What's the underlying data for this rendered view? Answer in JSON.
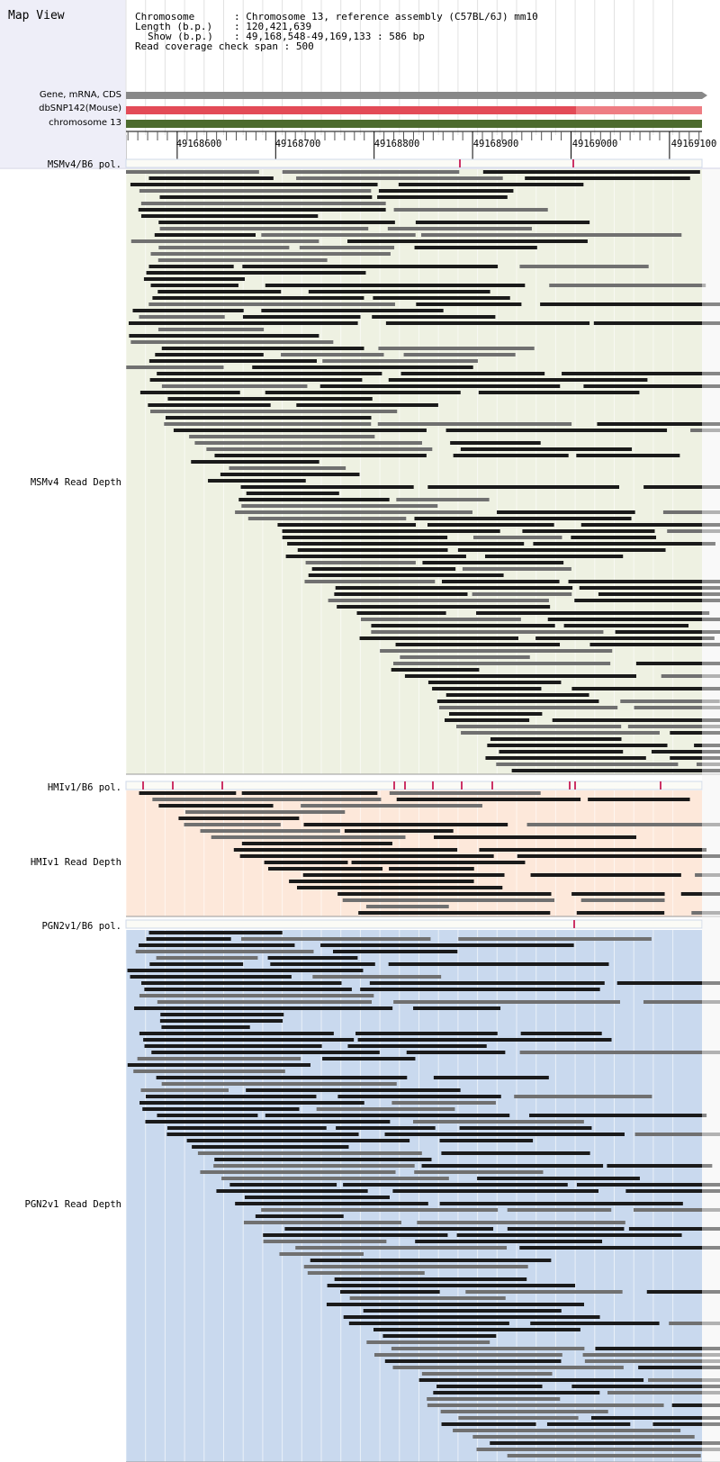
{
  "map_view": {
    "title": "Map View"
  },
  "info": {
    "chromosome_label": "Chromosome",
    "chromosome_value": "Chromosome 13, reference assembly (C57BL/6J) mm10",
    "length_label": "Length (b.p.)",
    "length_value": "120,421,639",
    "show_label": "Show (b.p.)",
    "show_value": "49,168,548-49,169,133 : 586 bp",
    "coverage_label": "Read coverage check span",
    "coverage_value": "500"
  },
  "tracks": {
    "gene": "Gene, mRNA, CDS",
    "snp": "dbSNP142(Mouse)",
    "chromosome": "chromosome 13"
  },
  "ruler": {
    "ticks": [
      "49168600",
      "49168700",
      "49168800",
      "49168900",
      "49169000",
      "49169100"
    ],
    "start": 49168548,
    "end": 49169133
  },
  "samples": [
    {
      "pol_label": "MSMv4/B6 pol.",
      "depth_label": "MSMv4 Read Depth",
      "color": "#eef1e2"
    },
    {
      "pol_label": "HMIv1/B6 pol.",
      "depth_label": "HMIv1 Read Depth",
      "color": "#fde8da"
    },
    {
      "pol_label": "PGN2v1/B6 pol.",
      "depth_label": "PGN2v1 Read Depth",
      "color": "#c9d9ee"
    }
  ],
  "colors": {
    "gene_bar": "#888888",
    "snp_bar": "#e34b57",
    "snp_bar_light": "#ee7d83",
    "chrom_bar": "#4d6b2e",
    "read_dark": "#1a1a1a",
    "read_gray": "#707070",
    "pol_mark": "#cc3366"
  }
}
